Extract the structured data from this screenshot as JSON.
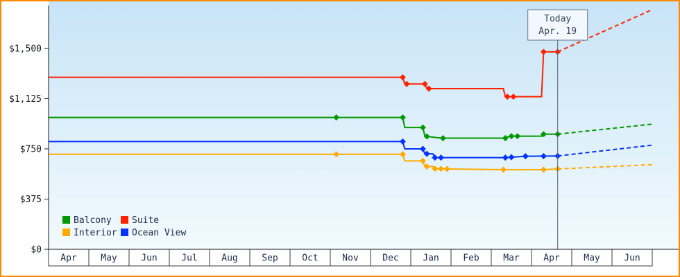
{
  "frame": {
    "border_color": "#ff8800"
  },
  "chart_data": {
    "type": "line",
    "title": "",
    "y_axis": {
      "ticks": [
        {
          "value": 0,
          "label": "$0"
        },
        {
          "value": 375,
          "label": "$375"
        },
        {
          "value": 750,
          "label": "$750"
        },
        {
          "value": 1125,
          "label": "$1,125"
        },
        {
          "value": 1500,
          "label": "$1,500"
        }
      ],
      "ylim": [
        0,
        1850
      ],
      "grid": false
    },
    "x_axis": {
      "month_labels": [
        "Apr",
        "May",
        "Jun",
        "Jul",
        "Aug",
        "Sep",
        "Oct",
        "Nov",
        "Dec",
        "Jan",
        "Feb",
        "Mar",
        "Apr",
        "May",
        "Jun"
      ]
    },
    "today": {
      "line1": "Today",
      "line2": "Apr. 19",
      "month_unit": 12.65
    },
    "series": [
      {
        "name": "Interior",
        "color": "#ffaa00",
        "solid": [
          [
            0,
            710
          ],
          [
            8.8,
            710
          ],
          [
            8.85,
            660
          ],
          [
            9.3,
            660
          ],
          [
            9.35,
            618
          ],
          [
            9.55,
            618
          ],
          [
            9.6,
            602
          ],
          [
            9.9,
            600
          ],
          [
            11.3,
            595
          ],
          [
            12.3,
            595
          ],
          [
            12.65,
            600
          ]
        ],
        "markers": [
          [
            7.15,
            710
          ],
          [
            8.8,
            710
          ],
          [
            9.3,
            660
          ],
          [
            9.4,
            618
          ],
          [
            9.6,
            602
          ],
          [
            9.75,
            601
          ],
          [
            9.9,
            600
          ],
          [
            11.3,
            595
          ],
          [
            12.3,
            595
          ],
          [
            12.65,
            600
          ]
        ],
        "dashed": [
          [
            12.65,
            600
          ],
          [
            15,
            632
          ]
        ]
      },
      {
        "name": "Ocean View",
        "color": "#0033ff",
        "solid": [
          [
            0,
            805
          ],
          [
            8.8,
            805
          ],
          [
            8.85,
            750
          ],
          [
            9.3,
            750
          ],
          [
            9.35,
            713
          ],
          [
            9.55,
            713
          ],
          [
            9.6,
            685
          ],
          [
            11.35,
            685
          ],
          [
            11.85,
            695
          ],
          [
            12.65,
            697
          ]
        ],
        "markers": [
          [
            8.8,
            805
          ],
          [
            9.3,
            750
          ],
          [
            9.4,
            713
          ],
          [
            9.6,
            685
          ],
          [
            9.75,
            685
          ],
          [
            11.35,
            685
          ],
          [
            11.5,
            688
          ],
          [
            11.85,
            695
          ],
          [
            12.3,
            696
          ],
          [
            12.65,
            697
          ]
        ],
        "dashed": [
          [
            12.65,
            697
          ],
          [
            15,
            778
          ]
        ]
      },
      {
        "name": "Balcony",
        "color": "#009900",
        "solid": [
          [
            0,
            985
          ],
          [
            8.8,
            985
          ],
          [
            8.85,
            910
          ],
          [
            9.3,
            910
          ],
          [
            9.35,
            845
          ],
          [
            9.75,
            830
          ],
          [
            11.35,
            830
          ],
          [
            11.45,
            845
          ],
          [
            12.25,
            845
          ],
          [
            12.3,
            860
          ],
          [
            12.65,
            860
          ]
        ],
        "markers": [
          [
            7.15,
            985
          ],
          [
            8.8,
            985
          ],
          [
            9.3,
            910
          ],
          [
            9.4,
            843
          ],
          [
            9.8,
            830
          ],
          [
            11.35,
            830
          ],
          [
            11.5,
            845
          ],
          [
            11.65,
            845
          ],
          [
            12.3,
            860
          ],
          [
            12.65,
            860
          ]
        ],
        "dashed": [
          [
            12.65,
            860
          ],
          [
            15,
            935
          ]
        ]
      },
      {
        "name": "Suite",
        "color": "#ff2200",
        "solid": [
          [
            0,
            1285
          ],
          [
            8.8,
            1285
          ],
          [
            8.85,
            1235
          ],
          [
            9.35,
            1235
          ],
          [
            9.4,
            1200
          ],
          [
            11.3,
            1200
          ],
          [
            11.35,
            1140
          ],
          [
            12.25,
            1140
          ],
          [
            12.3,
            1475
          ],
          [
            12.65,
            1475
          ]
        ],
        "markers": [
          [
            8.8,
            1285
          ],
          [
            8.9,
            1235
          ],
          [
            9.35,
            1235
          ],
          [
            9.45,
            1200
          ],
          [
            11.4,
            1140
          ],
          [
            11.55,
            1140
          ],
          [
            12.3,
            1475
          ],
          [
            12.65,
            1475
          ]
        ],
        "dashed": [
          [
            12.65,
            1475
          ],
          [
            15,
            1790
          ]
        ]
      }
    ],
    "legend": {
      "items": [
        {
          "label": "Balcony",
          "color": "#009900"
        },
        {
          "label": "Suite",
          "color": "#ff2200"
        },
        {
          "label": "Interior",
          "color": "#ffaa00"
        },
        {
          "label": "Ocean View",
          "color": "#0033ff"
        }
      ]
    }
  }
}
